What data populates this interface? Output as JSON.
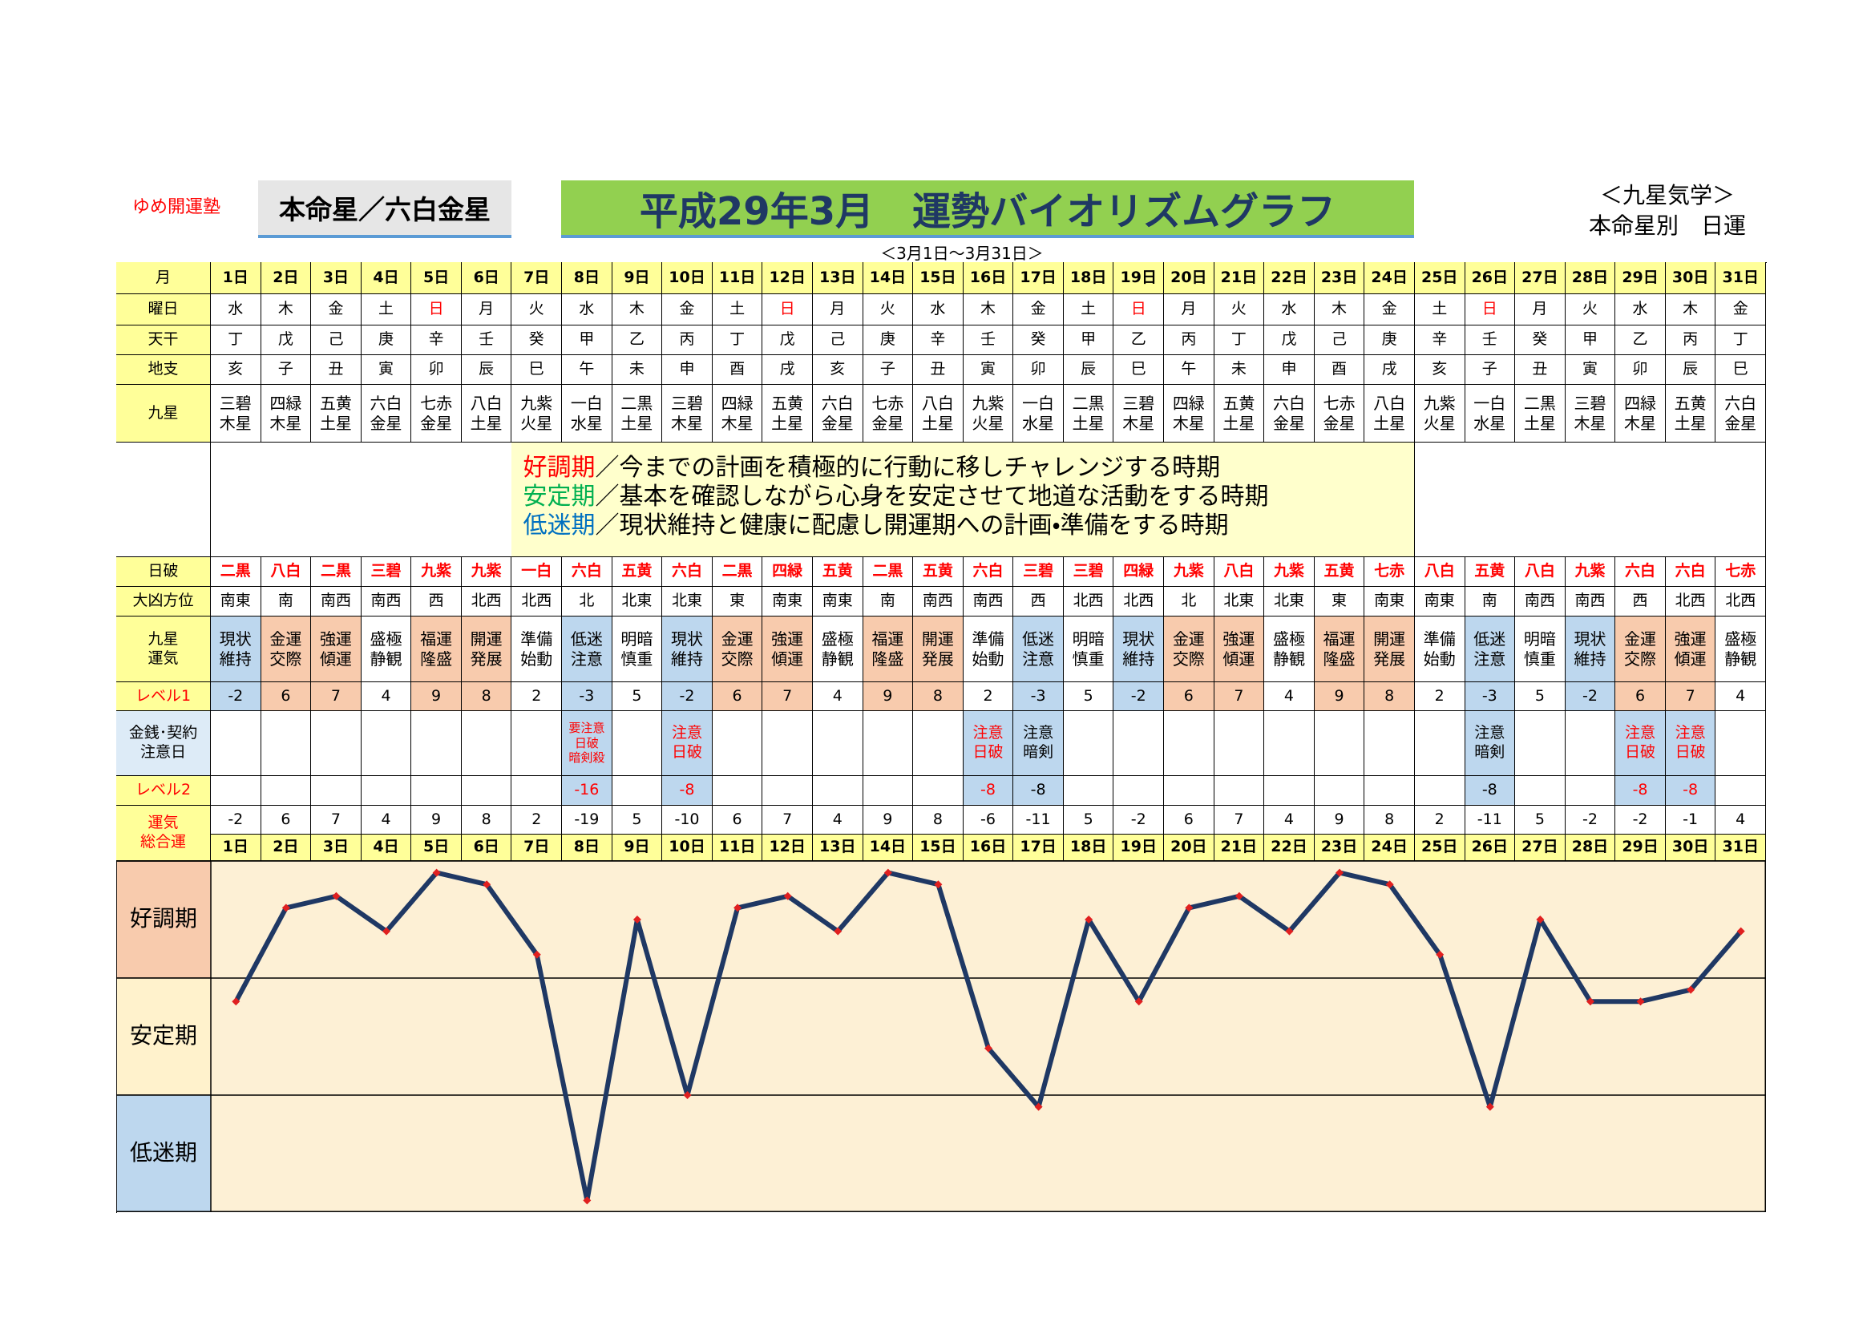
{
  "header": {
    "school": "ゆめ開運塾",
    "honmeisei": "本命星／六白金星",
    "title": "平成29年3月　運勢バイオリズムグラフ",
    "period": "＜3月1日～3月31日＞",
    "category": "＜九星気学＞",
    "subtitle": "本命星別　日運"
  },
  "table": {
    "row_labels": {
      "month": {
        "text": "月",
        "color": "#000000",
        "fill": "#ffff99"
      },
      "weekday": {
        "text": "曜日",
        "color": "#000000",
        "fill": "#ffff99"
      },
      "stem": {
        "text": "天干",
        "color": "#000000",
        "fill": "#ffff99"
      },
      "branch": {
        "text": "地支",
        "color": "#000000",
        "fill": "#ffff99"
      },
      "star": {
        "text": "九星",
        "color": "#000000",
        "fill": "#ffff99"
      },
      "day_break": {
        "text": "日破",
        "color": "#000000",
        "fill": "#ffff99"
      },
      "bad_direction": {
        "text": "大凶方位",
        "color": "#000000",
        "fill": "#ffff99"
      },
      "luck": {
        "text": "九星\n運気",
        "color": "#000000",
        "fill": "#ffff99"
      },
      "level1": {
        "text": "レベル1",
        "color": "#ff0000",
        "fill": "#ffff99"
      },
      "money": {
        "text": "金銭･契約\n注意日",
        "color": "#000000",
        "fill": "#ddebf7"
      },
      "level2": {
        "text": "レベル2",
        "color": "#ff0000",
        "fill": "#ffff99"
      },
      "total": {
        "text": "運気\n総合運",
        "color": "#ff0000",
        "fill": "#ffff99"
      }
    },
    "days": [
      "1日",
      "2日",
      "3日",
      "4日",
      "5日",
      "6日",
      "7日",
      "8日",
      "9日",
      "10日",
      "11日",
      "12日",
      "13日",
      "14日",
      "15日",
      "16日",
      "17日",
      "18日",
      "19日",
      "20日",
      "21日",
      "22日",
      "23日",
      "24日",
      "25日",
      "26日",
      "27日",
      "28日",
      "29日",
      "30日",
      "31日"
    ],
    "day_fill": "#ffff99",
    "weekdays": [
      "水",
      "木",
      "金",
      "土",
      "日",
      "月",
      "火",
      "水",
      "木",
      "金",
      "土",
      "日",
      "月",
      "火",
      "水",
      "木",
      "金",
      "土",
      "日",
      "月",
      "火",
      "水",
      "木",
      "金",
      "土",
      "日",
      "月",
      "火",
      "水",
      "木",
      "金"
    ],
    "weekday_colors": [
      "#000",
      "#000",
      "#000",
      "#000",
      "#f00",
      "#000",
      "#000",
      "#000",
      "#000",
      "#000",
      "#000",
      "#f00",
      "#000",
      "#000",
      "#000",
      "#000",
      "#000",
      "#000",
      "#f00",
      "#000",
      "#000",
      "#000",
      "#000",
      "#000",
      "#000",
      "#f00",
      "#000",
      "#000",
      "#000",
      "#000",
      "#000"
    ],
    "stems": [
      "丁",
      "戊",
      "己",
      "庚",
      "辛",
      "壬",
      "癸",
      "甲",
      "乙",
      "丙",
      "丁",
      "戊",
      "己",
      "庚",
      "辛",
      "壬",
      "癸",
      "甲",
      "乙",
      "丙",
      "丁",
      "戊",
      "己",
      "庚",
      "辛",
      "壬",
      "癸",
      "甲",
      "乙",
      "丙",
      "丁"
    ],
    "branches": [
      "亥",
      "子",
      "丑",
      "寅",
      "卯",
      "辰",
      "巳",
      "午",
      "未",
      "申",
      "酉",
      "戌",
      "亥",
      "子",
      "丑",
      "寅",
      "卯",
      "辰",
      "巳",
      "午",
      "未",
      "申",
      "酉",
      "戌",
      "亥",
      "子",
      "丑",
      "寅",
      "卯",
      "辰",
      "巳"
    ],
    "stars": [
      "三碧\n木星",
      "四緑\n木星",
      "五黄\n土星",
      "六白\n金星",
      "七赤\n金星",
      "八白\n土星",
      "九紫\n火星",
      "一白\n水星",
      "二黒\n土星",
      "三碧\n木星",
      "四緑\n木星",
      "五黄\n土星",
      "六白\n金星",
      "七赤\n金星",
      "八白\n土星",
      "九紫\n火星",
      "一白\n水星",
      "二黒\n土星",
      "三碧\n木星",
      "四緑\n木星",
      "五黄\n土星",
      "六白\n金星",
      "七赤\n金星",
      "八白\n土星",
      "九紫\n火星",
      "一白\n水星",
      "二黒\n土星",
      "三碧\n木星",
      "四緑\n木星",
      "五黄\n土星",
      "六白\n金星"
    ],
    "day_break": [
      "二黒",
      "八白",
      "二黒",
      "三碧",
      "九紫",
      "九紫",
      "一白",
      "六白",
      "五黄",
      "六白",
      "二黒",
      "四緑",
      "五黄",
      "二黒",
      "五黄",
      "六白",
      "三碧",
      "三碧",
      "四緑",
      "九紫",
      "八白",
      "九紫",
      "五黄",
      "七赤",
      "八白",
      "五黄",
      "八白",
      "九紫",
      "六白",
      "六白",
      "七赤"
    ],
    "day_break_color": "#ff0000",
    "bad_direction": [
      "南東",
      "南",
      "南西",
      "南西",
      "西",
      "北西",
      "北西",
      "北",
      "北東",
      "北東",
      "東",
      "南東",
      "南東",
      "南",
      "南西",
      "南西",
      "西",
      "北西",
      "北西",
      "北",
      "北東",
      "北東",
      "東",
      "南東",
      "南東",
      "南",
      "南西",
      "南西",
      "西",
      "北西",
      "北西"
    ],
    "luck": [
      "現状\n維持",
      "金運\n交際",
      "強運\n傾運",
      "盛極\n静観",
      "福運\n隆盛",
      "開運\n発展",
      "準備\n始動",
      "低迷\n注意",
      "明暗\n慎重",
      "現状\n維持",
      "金運\n交際",
      "強運\n傾運",
      "盛極\n静観",
      "福運\n隆盛",
      "開運\n発展",
      "準備\n始動",
      "低迷\n注意",
      "明暗\n慎重",
      "現状\n維持",
      "金運\n交際",
      "強運\n傾運",
      "盛極\n静観",
      "福運\n隆盛",
      "開運\n発展",
      "準備\n始動",
      "低迷\n注意",
      "明暗\n慎重",
      "現状\n維持",
      "金運\n交際",
      "強運\n傾運",
      "盛極\n静観"
    ],
    "luck_fill": [
      "#bdd7ee",
      "#f8cbad",
      "#f8cbad",
      "#fff",
      "#f8cbad",
      "#f8cbad",
      "#fff",
      "#bdd7ee",
      "#fff",
      "#bdd7ee",
      "#f8cbad",
      "#f8cbad",
      "#fff",
      "#f8cbad",
      "#f8cbad",
      "#fff",
      "#bdd7ee",
      "#fff",
      "#bdd7ee",
      "#f8cbad",
      "#f8cbad",
      "#fff",
      "#f8cbad",
      "#f8cbad",
      "#fff",
      "#bdd7ee",
      "#fff",
      "#bdd7ee",
      "#f8cbad",
      "#f8cbad",
      "#fff"
    ],
    "level1": [
      -2,
      6,
      7,
      4,
      9,
      8,
      2,
      -3,
      5,
      -2,
      6,
      7,
      4,
      9,
      8,
      2,
      -3,
      5,
      -2,
      6,
      7,
      4,
      9,
      8,
      2,
      -3,
      5,
      -2,
      6,
      7,
      4
    ],
    "notes": [
      null,
      null,
      null,
      null,
      null,
      null,
      null,
      {
        "text": "要注意\n日破\n暗剣殺",
        "color": "#ff0000"
      },
      null,
      {
        "text": "注意\n日破",
        "color": "#ff0000"
      },
      null,
      null,
      null,
      null,
      null,
      {
        "text": "注意\n日破",
        "color": "#ff0000"
      },
      {
        "text": "注意\n暗剣",
        "color": "#000000"
      },
      null,
      null,
      null,
      null,
      null,
      null,
      null,
      null,
      {
        "text": "注意\n暗剣",
        "color": "#000000"
      },
      null,
      null,
      {
        "text": "注意\n日破",
        "color": "#ff0000"
      },
      {
        "text": "注意\n日破",
        "color": "#ff0000"
      },
      null
    ],
    "level2": [
      null,
      null,
      null,
      null,
      null,
      null,
      null,
      -16,
      null,
      -8,
      null,
      null,
      null,
      null,
      null,
      -8,
      -8,
      null,
      null,
      null,
      null,
      null,
      null,
      null,
      null,
      -8,
      null,
      null,
      -8,
      -8,
      null
    ],
    "level2_fill": "#bdd7ee"
  },
  "legend": [
    {
      "term": "好調期",
      "text": "／今までの計画を積極的に行動に移しチャレンジする時期",
      "color": "#ff0000"
    },
    {
      "term": "安定期",
      "text": "／基本を確認しながら心身を安定させて地道な活動をする時期",
      "color": "#00b050"
    },
    {
      "term": "低迷期",
      "text": "／現状維持と健康に配慮し開運期への計画・準備をする時期",
      "color": "#0070c0"
    }
  ],
  "chart_data": {
    "type": "line",
    "values": [
      -2,
      6,
      7,
      4,
      9,
      8,
      2,
      -19,
      5,
      -10,
      6,
      7,
      4,
      9,
      8,
      -6,
      -11,
      5,
      -2,
      6,
      7,
      4,
      9,
      8,
      2,
      -11,
      5,
      -2,
      -2,
      -1,
      4
    ],
    "ylim": [
      -20,
      10
    ],
    "bands": [
      "好調期",
      "安定期",
      "低迷期"
    ],
    "band_colors": [
      "#f8cbad",
      "#fff2cc",
      "#bdd7ee"
    ],
    "background": "#fdf0d5",
    "line_color": "#1f3864",
    "marker_color": "#e02020"
  }
}
